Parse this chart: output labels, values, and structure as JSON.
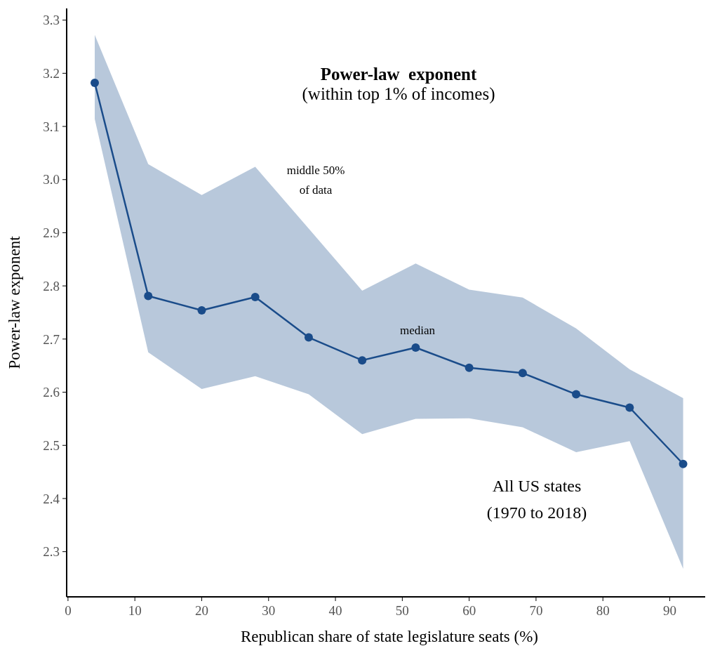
{
  "chart_data": {
    "type": "line",
    "title": "Power-law  exponent",
    "subtitle": "(within top 1% of incomes)",
    "xlabel": "Republican share of state legislature seats (%)",
    "ylabel": "Power-law exponent",
    "x": [
      4,
      12,
      20,
      28,
      36,
      44,
      52,
      60,
      68,
      76,
      84,
      92
    ],
    "series": [
      {
        "color": "#1a4c8a",
        "values": [
          3.182,
          2.781,
          2.754,
          2.779,
          2.703,
          2.66,
          2.684,
          2.646,
          2.636,
          2.596,
          2.571,
          2.465
        ],
        "lower": [
          3.114,
          2.675,
          2.606,
          2.63,
          2.596,
          2.521,
          2.55,
          2.551,
          2.534,
          2.487,
          2.508,
          2.268
        ],
        "upper": [
          3.272,
          3.029,
          2.971,
          3.024,
          2.908,
          2.791,
          2.842,
          2.793,
          2.778,
          2.72,
          2.643,
          2.589
        ]
      }
    ],
    "xlim": [
      -0.2,
      95.3
    ],
    "ylim": [
      2.215,
      3.322
    ],
    "xticks": [
      0,
      10,
      20,
      30,
      40,
      50,
      60,
      70,
      80,
      90
    ],
    "yticks": [
      2.3,
      2.4,
      2.5,
      2.6,
      2.7,
      2.8,
      2.9,
      {
        "value": 3,
        "label": "3.0"
      },
      3.1,
      3.2,
      3.3
    ],
    "grid": false,
    "marker": "circle",
    "line_style": "solid",
    "annotations": [
      "middle 50%\nof data",
      "median",
      "All US states\n(1970 to 2018)"
    ]
  }
}
